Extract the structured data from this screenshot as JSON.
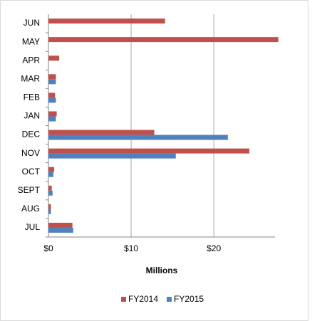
{
  "chart_data": {
    "type": "bar",
    "orientation": "horizontal",
    "categories": [
      "JUL",
      "AUG",
      "SEPT",
      "OCT",
      "NOV",
      "DEC",
      "JAN",
      "FEB",
      "MAR",
      "APR",
      "MAY",
      "JUN"
    ],
    "series": [
      {
        "name": "FY2014",
        "color": "#c0504d",
        "values": [
          2.9,
          0.3,
          0.4,
          0.7,
          24.3,
          12.8,
          1.0,
          0.8,
          0.9,
          1.3,
          27.8,
          14.1
        ]
      },
      {
        "name": "FY2015",
        "color": "#4f81bd",
        "values": [
          3.0,
          0.3,
          0.5,
          0.6,
          15.4,
          21.7,
          0.9,
          0.9,
          0.9,
          null,
          null,
          null
        ]
      }
    ],
    "xlabel": "Millions",
    "xlim": [
      0,
      28
    ],
    "xticks": [
      {
        "value": 0,
        "label": "$0"
      },
      {
        "value": 10,
        "label": "$10"
      },
      {
        "value": 20,
        "label": "$20"
      }
    ],
    "grid": true,
    "legend": "bottom"
  }
}
